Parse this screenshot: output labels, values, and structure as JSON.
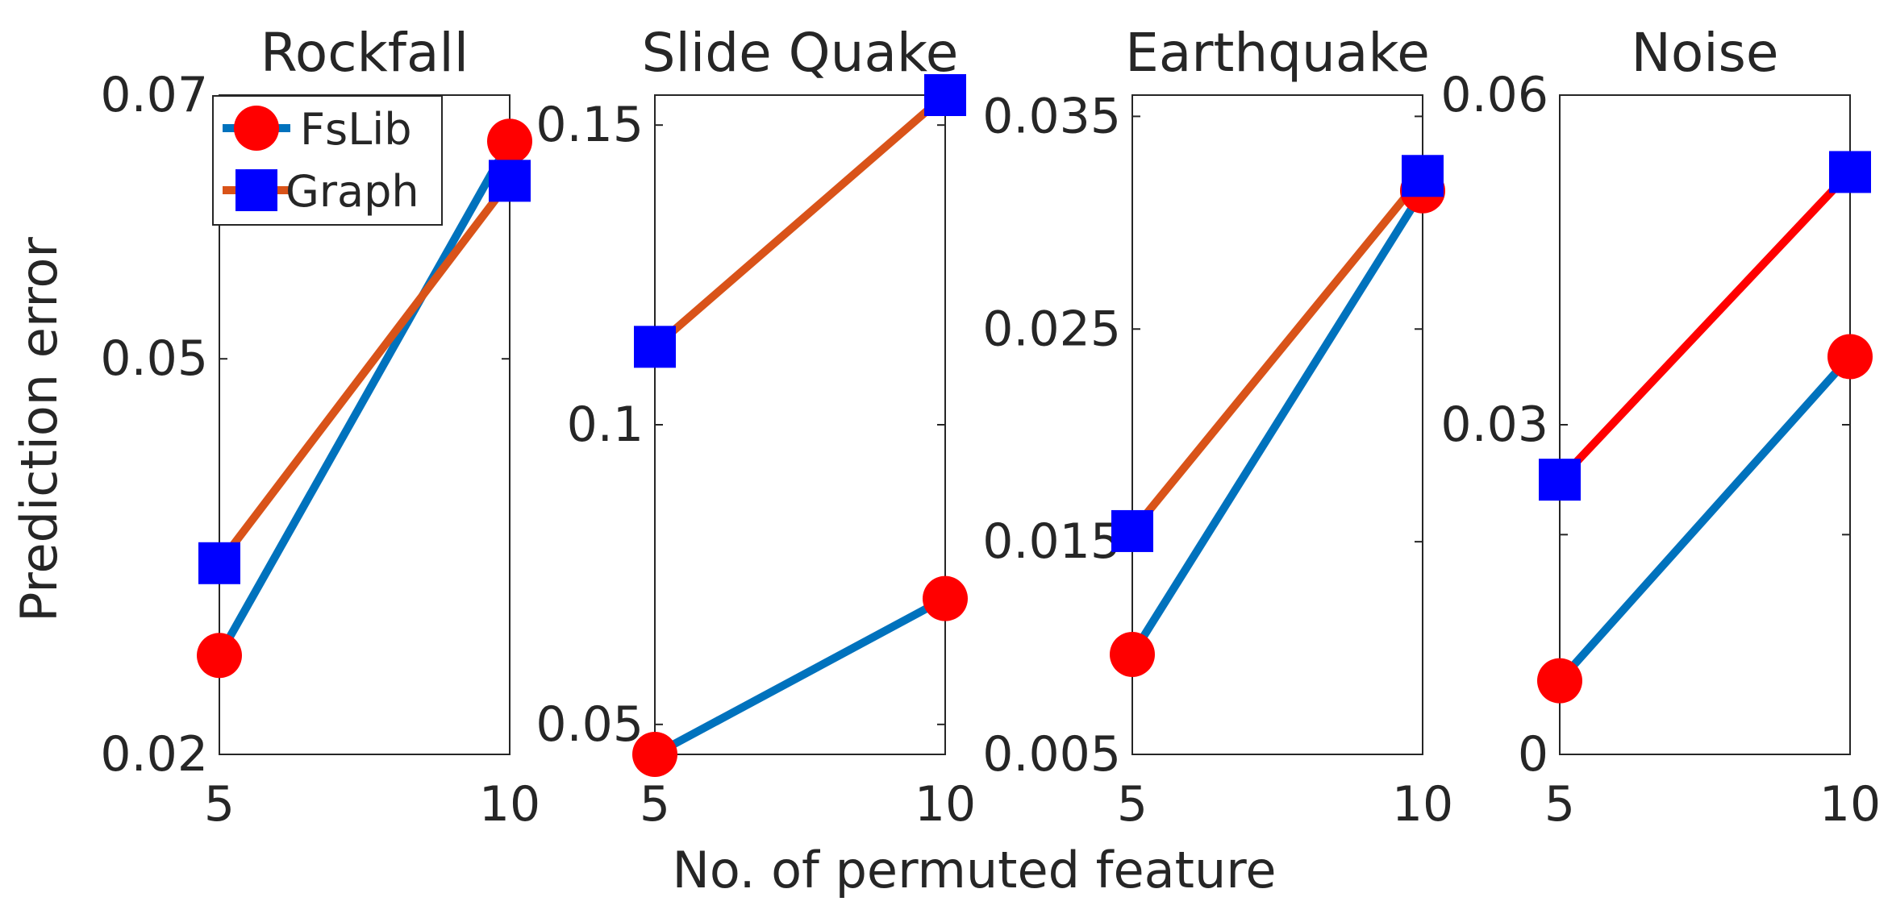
{
  "ylabel": "Prediction error",
  "xlabel": "No. of permuted feature",
  "legend": {
    "location": "top-left of first panel",
    "entries": [
      {
        "label": "FsLib",
        "marker": "circle",
        "color": "#ff0000"
      },
      {
        "label": "Graph",
        "marker": "square",
        "color": "#0000ff"
      }
    ]
  },
  "colors": {
    "fslib_marker": "#ff0000",
    "graph_marker": "#0000ff",
    "line_blue": "#0072bd",
    "line_orange": "#d95319",
    "line_red": "#ff0000"
  },
  "chart_data": [
    {
      "type": "line",
      "title": "Rockfall",
      "x": [
        5,
        10
      ],
      "xticks": [
        "5",
        "10"
      ],
      "ylim": [
        0.02,
        0.07
      ],
      "yticks": [
        0.02,
        0.05,
        0.07
      ],
      "ytick_labels": [
        "0.02",
        "0.05",
        "0.07"
      ],
      "series": [
        {
          "name": "FsLib",
          "values": [
            0.0275,
            0.0665
          ],
          "line_color": "#0072bd"
        },
        {
          "name": "Graph",
          "values": [
            0.0345,
            0.0635
          ],
          "line_color": "#d95319"
        }
      ]
    },
    {
      "type": "line",
      "title": "Slide Quake",
      "x": [
        5,
        10
      ],
      "xticks": [
        "5",
        "10"
      ],
      "ylim": [
        0.045,
        0.155
      ],
      "yticks": [
        0.05,
        0.1,
        0.15
      ],
      "ytick_labels": [
        "0.05",
        "0.1",
        "0.15"
      ],
      "series": [
        {
          "name": "FsLib",
          "values": [
            0.045,
            0.071
          ],
          "line_color": "#0072bd"
        },
        {
          "name": "Graph",
          "values": [
            0.113,
            0.155
          ],
          "line_color": "#d95319"
        }
      ]
    },
    {
      "type": "line",
      "title": "Earthquake",
      "x": [
        5,
        10
      ],
      "xticks": [
        "5",
        "10"
      ],
      "ylim": [
        0.005,
        0.036
      ],
      "yticks": [
        0.005,
        0.015,
        0.025,
        0.035
      ],
      "ytick_labels": [
        "0.005",
        "0.015",
        "0.025",
        "0.035"
      ],
      "series": [
        {
          "name": "FsLib",
          "values": [
            0.0097,
            0.0315
          ],
          "line_color": "#0072bd"
        },
        {
          "name": "Graph",
          "values": [
            0.0155,
            0.0322
          ],
          "line_color": "#d95319"
        }
      ]
    },
    {
      "type": "line",
      "title": "Noise",
      "x": [
        5,
        10
      ],
      "xticks": [
        "5",
        "10"
      ],
      "ylim": [
        0,
        0.06
      ],
      "yticks": [
        0,
        0.02,
        0.03,
        0.06
      ],
      "ytick_labels": [
        "0",
        "",
        "0.03",
        "0.06"
      ],
      "series": [
        {
          "name": "FsLib",
          "values": [
            0.0067,
            0.0362
          ],
          "line_color": "#0072bd"
        },
        {
          "name": "Graph",
          "values": [
            0.025,
            0.053
          ],
          "line_color": "#ff0000"
        }
      ]
    }
  ]
}
